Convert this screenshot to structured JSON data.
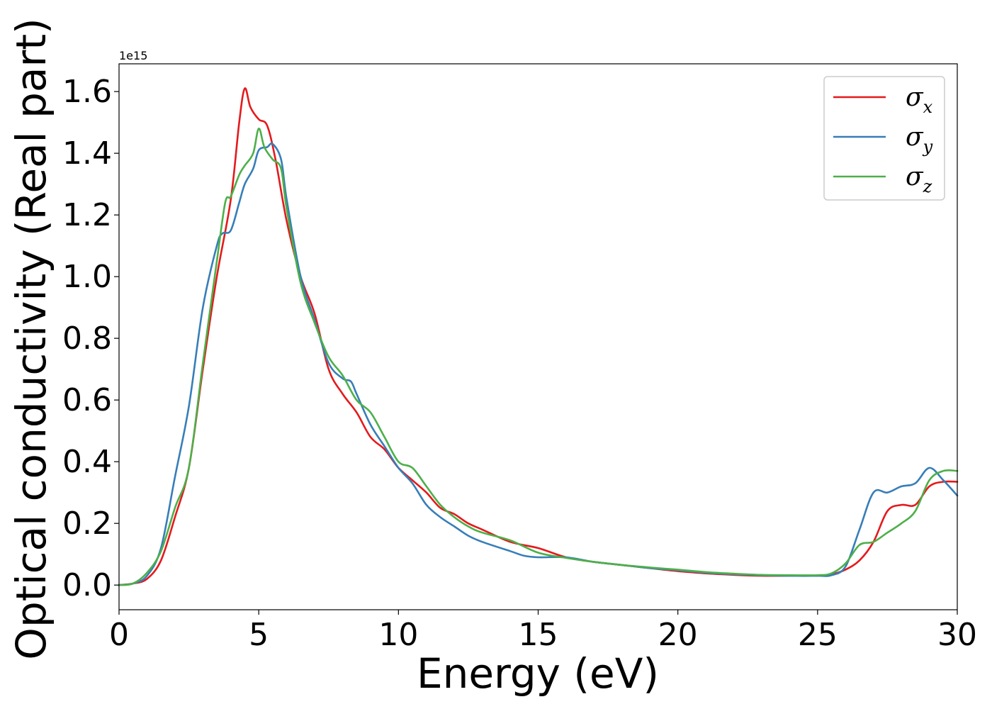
{
  "chart_data": {
    "type": "line",
    "xlabel": "Energy (eV)",
    "ylabel": "Optical conductivity (Real part)",
    "y_offset_label": "1e15",
    "xlim": [
      0,
      30
    ],
    "ylim": [
      -0.08,
      1.69
    ],
    "x_ticks": [
      0,
      5,
      10,
      15,
      20,
      25,
      30
    ],
    "x_tick_labels": [
      "0",
      "5",
      "10",
      "15",
      "20",
      "25",
      "30"
    ],
    "y_ticks": [
      0.0,
      0.2,
      0.4,
      0.6,
      0.8,
      1.0,
      1.2,
      1.4,
      1.6
    ],
    "y_tick_labels": [
      "0.0",
      "0.2",
      "0.4",
      "0.6",
      "0.8",
      "1.0",
      "1.2",
      "1.4",
      "1.6"
    ],
    "grid": false,
    "legend_position": "top-right",
    "series": [
      {
        "name": "σx",
        "legend_symbol": "σ",
        "legend_subscript": "x",
        "color": "#e41a1c",
        "x": [
          0,
          0.5,
          1.0,
          1.5,
          2.0,
          2.5,
          3.0,
          3.5,
          4.0,
          4.3,
          4.5,
          4.7,
          5.0,
          5.3,
          5.6,
          6.0,
          6.5,
          7.0,
          7.5,
          8.0,
          8.5,
          9.0,
          9.5,
          10.0,
          10.5,
          11.0,
          11.5,
          12.0,
          12.5,
          13.0,
          14.0,
          15.0,
          16.0,
          17.0,
          18.0,
          19.0,
          20.0,
          21.0,
          22.0,
          23.0,
          24.0,
          25.0,
          25.5,
          26.0,
          26.5,
          27.0,
          27.5,
          28.0,
          28.5,
          29.0,
          29.5,
          30.0
        ],
        "y": [
          0.0,
          0.005,
          0.02,
          0.08,
          0.22,
          0.38,
          0.7,
          1.0,
          1.25,
          1.5,
          1.61,
          1.55,
          1.51,
          1.49,
          1.38,
          1.18,
          1.0,
          0.88,
          0.7,
          0.62,
          0.56,
          0.48,
          0.44,
          0.38,
          0.34,
          0.3,
          0.25,
          0.23,
          0.2,
          0.18,
          0.14,
          0.12,
          0.09,
          0.075,
          0.065,
          0.055,
          0.045,
          0.038,
          0.033,
          0.03,
          0.03,
          0.03,
          0.035,
          0.05,
          0.08,
          0.14,
          0.24,
          0.26,
          0.26,
          0.32,
          0.335,
          0.335
        ]
      },
      {
        "name": "σy",
        "legend_symbol": "σ",
        "legend_subscript": "y",
        "color": "#377eb8",
        "x": [
          0,
          0.5,
          1.0,
          1.5,
          2.0,
          2.5,
          3.0,
          3.5,
          3.7,
          4.0,
          4.3,
          4.5,
          4.8,
          5.0,
          5.3,
          5.5,
          5.8,
          6.0,
          6.5,
          7.0,
          7.5,
          8.0,
          8.3,
          8.5,
          9.0,
          9.5,
          10.0,
          10.5,
          11.0,
          11.5,
          12.0,
          12.5,
          13.0,
          14.0,
          14.5,
          15.0,
          16.0,
          17.0,
          18.0,
          19.0,
          20.0,
          21.0,
          22.0,
          23.0,
          24.0,
          25.0,
          25.5,
          26.0,
          26.5,
          27.0,
          27.5,
          28.0,
          28.5,
          29.0,
          29.5,
          30.0
        ],
        "y": [
          0.0,
          0.005,
          0.03,
          0.12,
          0.35,
          0.58,
          0.9,
          1.1,
          1.14,
          1.15,
          1.24,
          1.3,
          1.35,
          1.41,
          1.42,
          1.43,
          1.38,
          1.25,
          1.0,
          0.86,
          0.72,
          0.67,
          0.66,
          0.62,
          0.52,
          0.45,
          0.38,
          0.33,
          0.26,
          0.22,
          0.19,
          0.16,
          0.14,
          0.11,
          0.095,
          0.09,
          0.09,
          0.075,
          0.065,
          0.055,
          0.048,
          0.04,
          0.035,
          0.032,
          0.03,
          0.03,
          0.032,
          0.06,
          0.18,
          0.3,
          0.3,
          0.32,
          0.33,
          0.38,
          0.34,
          0.29
        ]
      },
      {
        "name": "σz",
        "legend_symbol": "σ",
        "legend_subscript": "z",
        "color": "#4daf4a",
        "x": [
          0,
          0.5,
          1.0,
          1.5,
          2.0,
          2.5,
          3.0,
          3.5,
          3.8,
          4.0,
          4.3,
          4.5,
          4.8,
          5.0,
          5.2,
          5.5,
          5.8,
          6.0,
          6.5,
          7.0,
          7.5,
          8.0,
          8.5,
          9.0,
          9.5,
          10.0,
          10.5,
          11.0,
          11.5,
          12.0,
          12.5,
          13.0,
          14.0,
          15.0,
          16.0,
          17.0,
          18.0,
          19.0,
          20.0,
          21.0,
          22.0,
          23.0,
          24.0,
          25.0,
          25.5,
          26.0,
          26.5,
          27.0,
          27.5,
          28.0,
          28.5,
          29.0,
          29.5,
          30.0
        ],
        "y": [
          0.0,
          0.005,
          0.04,
          0.11,
          0.25,
          0.38,
          0.72,
          1.05,
          1.24,
          1.26,
          1.33,
          1.36,
          1.4,
          1.48,
          1.42,
          1.38,
          1.35,
          1.22,
          0.98,
          0.85,
          0.74,
          0.68,
          0.6,
          0.56,
          0.48,
          0.4,
          0.38,
          0.32,
          0.26,
          0.22,
          0.19,
          0.17,
          0.145,
          0.105,
          0.088,
          0.075,
          0.065,
          0.057,
          0.05,
          0.042,
          0.037,
          0.033,
          0.032,
          0.032,
          0.038,
          0.07,
          0.13,
          0.14,
          0.17,
          0.2,
          0.24,
          0.34,
          0.37,
          0.37
        ]
      }
    ]
  }
}
